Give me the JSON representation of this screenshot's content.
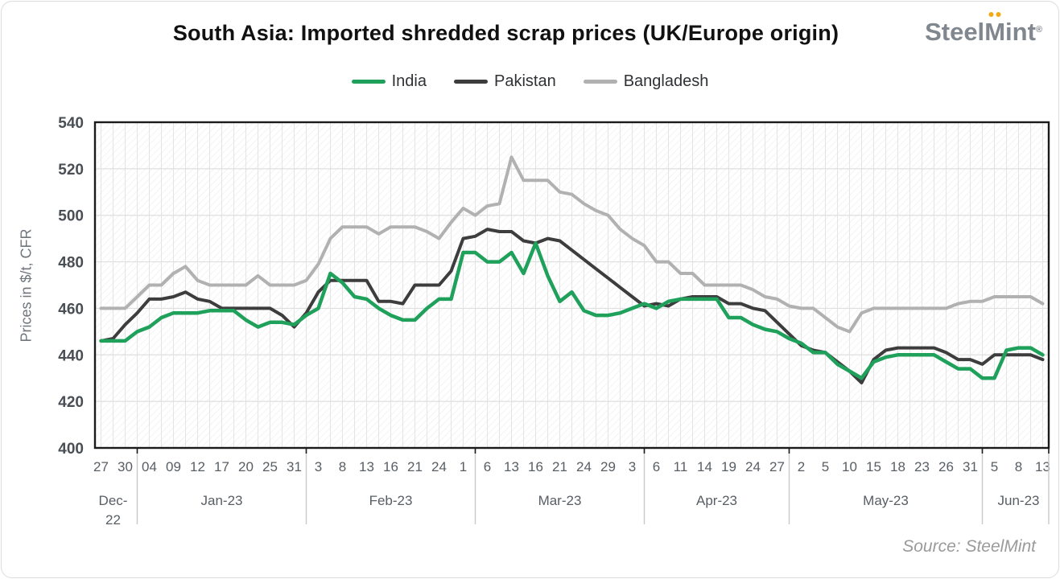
{
  "title": "South Asia: Imported shredded scrap prices (UK/Europe origin)",
  "logo": {
    "steel": "Steel",
    "mint": "Mint",
    "registered": "®"
  },
  "source_note": "Source: SteelMint",
  "legend": [
    {
      "label": "India",
      "color": "#1FA15C"
    },
    {
      "label": "Pakistan",
      "color": "#3D3D3D"
    },
    {
      "label": "Bangladesh",
      "color": "#B1B1B1"
    }
  ],
  "y_axis": {
    "title": "Prices in $/t, CFR",
    "min": 400,
    "max": 540,
    "ticks": [
      540,
      520,
      500,
      480,
      460,
      440,
      420,
      400
    ]
  },
  "chart_data": {
    "type": "line",
    "note": "Tick labels fall on every second data point; prices in $/t CFR",
    "x_axis": {
      "month_groups": [
        {
          "label": "Dec-22",
          "label_lines": [
            "Dec-",
            "22"
          ],
          "ticks": [
            "27",
            "30"
          ]
        },
        {
          "label": "Jan-23",
          "label_lines": [
            "Jan-23"
          ],
          "ticks": [
            "04",
            "09",
            "12",
            "17",
            "20",
            "25",
            "31"
          ]
        },
        {
          "label": "Feb-23",
          "label_lines": [
            "Feb-23"
          ],
          "ticks": [
            "3",
            "8",
            "13",
            "16",
            "21",
            "24",
            "1"
          ]
        },
        {
          "label": "Mar-23",
          "label_lines": [
            "Mar-23"
          ],
          "ticks": [
            "6",
            "13",
            "16",
            "21",
            "24",
            "29",
            "3"
          ]
        },
        {
          "label": "Apr-23",
          "label_lines": [
            "Apr-23"
          ],
          "ticks": [
            "6",
            "11",
            "14",
            "19",
            "24",
            "27"
          ]
        },
        {
          "label": "May-23",
          "label_lines": [
            "May-23"
          ],
          "ticks": [
            "2",
            "5",
            "10",
            "15",
            "18",
            "23",
            "26",
            "31"
          ]
        },
        {
          "label": "Jun-23",
          "label_lines": [
            "Jun-23"
          ],
          "ticks": [
            "5",
            "8",
            "13"
          ]
        }
      ]
    },
    "series": [
      {
        "name": "India",
        "color": "#1FA15C",
        "width": 4.5,
        "values": [
          446,
          446,
          446,
          450,
          452,
          456,
          458,
          458,
          458,
          459,
          459,
          459,
          455,
          452,
          454,
          454,
          453,
          457,
          460,
          475,
          471,
          465,
          464,
          460,
          457,
          455,
          455,
          460,
          464,
          464,
          484,
          484,
          480,
          480,
          484,
          475,
          488,
          474,
          463,
          467,
          459,
          457,
          457,
          458,
          460,
          462,
          460,
          463,
          464,
          464,
          464,
          464,
          456,
          456,
          453,
          451,
          450,
          447,
          445,
          441,
          441,
          436,
          433,
          430,
          437,
          439,
          440,
          440,
          440,
          440,
          437,
          434,
          434,
          430,
          430,
          442,
          443,
          443,
          440
        ]
      },
      {
        "name": "Pakistan",
        "color": "#3D3D3D",
        "width": 4,
        "values": [
          446,
          447,
          453,
          458,
          464,
          464,
          465,
          467,
          464,
          463,
          460,
          460,
          460,
          460,
          460,
          457,
          452,
          458,
          467,
          472,
          472,
          472,
          472,
          463,
          463,
          462,
          470,
          470,
          470,
          476,
          490,
          491,
          494,
          493,
          493,
          489,
          488,
          490,
          489,
          485,
          481,
          477,
          473,
          469,
          465,
          461,
          462,
          461,
          464,
          465,
          465,
          465,
          462,
          462,
          460,
          459,
          454,
          449,
          444,
          442,
          441,
          437,
          433,
          428,
          438,
          442,
          443,
          443,
          443,
          443,
          441,
          438,
          438,
          436,
          440,
          440,
          440,
          440,
          438
        ]
      },
      {
        "name": "Bangladesh",
        "color": "#B1B1B1",
        "width": 4,
        "values": [
          460,
          460,
          460,
          465,
          470,
          470,
          475,
          478,
          472,
          470,
          470,
          470,
          470,
          474,
          470,
          470,
          470,
          472,
          479,
          490,
          495,
          495,
          495,
          492,
          495,
          495,
          495,
          493,
          490,
          497,
          503,
          500,
          504,
          505,
          525,
          515,
          515,
          515,
          510,
          509,
          505,
          502,
          500,
          494,
          490,
          487,
          480,
          480,
          475,
          475,
          470,
          470,
          470,
          470,
          468,
          465,
          464,
          461,
          460,
          460,
          456,
          452,
          450,
          458,
          460,
          460,
          460,
          460,
          460,
          460,
          460,
          462,
          463,
          463,
          465,
          465,
          465,
          465,
          462
        ]
      }
    ],
    "colors": {
      "grid": "#e4e4e4",
      "hatch": "#ededed",
      "plot_border": "#1a1a1a",
      "divider": "#c9c9c9",
      "y_tick_text": "#4a4f55",
      "x_tick_text": "#585e64"
    }
  }
}
